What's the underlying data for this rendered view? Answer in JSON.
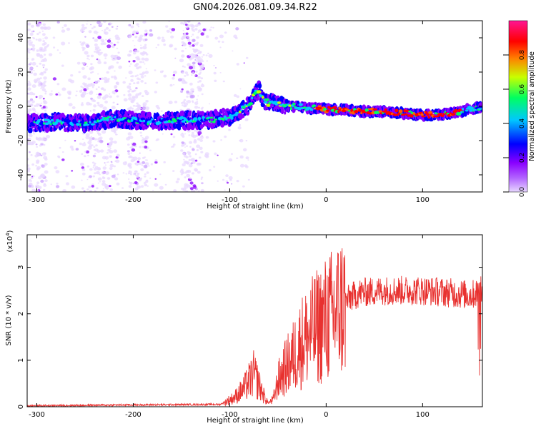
{
  "title": "GN04.2026.081.09.34.R22",
  "chart_data": [
    {
      "type": "heatmap",
      "xlabel": "Height of straight line (km)",
      "ylabel": "Frequency (Hz)",
      "xlim": [
        -310,
        162
      ],
      "ylim": [
        -50,
        50
      ],
      "xticks": [
        -300,
        -200,
        -100,
        0,
        100
      ],
      "yticks": [
        -40,
        -20,
        0,
        20,
        40
      ],
      "colorbar": {
        "label": "Normalized spectral amplitude",
        "range": [
          0.0,
          1.0
        ],
        "ticks": [
          0.0,
          0.2,
          0.4,
          0.6,
          0.8
        ],
        "colors": [
          "#e8d8ff",
          "#8a00ff",
          "#0000ff",
          "#00c8ff",
          "#00ff60",
          "#c8ff00",
          "#ff6000",
          "#ff0000",
          "#ff1493"
        ]
      },
      "ridge": {
        "x": [
          -310,
          -280,
          -250,
          -220,
          -200,
          -180,
          -150,
          -120,
          -100,
          -90,
          -80,
          -75,
          -70,
          -65,
          -60,
          -55,
          -50,
          -40,
          -30,
          -20,
          -10,
          0,
          20,
          40,
          60,
          80,
          100,
          120,
          140,
          162
        ],
        "y": [
          -10,
          -9,
          -10,
          -7,
          -8,
          -9,
          -8,
          -8,
          -6,
          -3,
          1,
          6,
          10,
          4,
          2,
          3,
          1,
          0,
          0,
          -1,
          -1,
          -2,
          -2,
          -3,
          -3,
          -4,
          -5,
          -5,
          -3,
          0
        ]
      }
    },
    {
      "type": "line",
      "xlabel": "Height of straight line (km)",
      "ylabel": "SNR (10 * v/v)",
      "scale_label": "(x10",
      "scale_exp": "4",
      "xlim": [
        -310,
        162
      ],
      "ylim": [
        0,
        3.7
      ],
      "xticks": [
        -300,
        -200,
        -100,
        0,
        100
      ],
      "yticks": [
        0,
        1,
        2,
        3
      ],
      "color": "#e8312f",
      "envelope": {
        "x": [
          -310,
          -200,
          -110,
          -95,
          -85,
          -75,
          -70,
          -65,
          -60,
          -55,
          -50,
          -45,
          -35,
          -25,
          -15,
          -5,
          5,
          15,
          25,
          35,
          60,
          80,
          100,
          130,
          150,
          162
        ],
        "y": [
          0.02,
          0.04,
          0.05,
          0.2,
          0.4,
          0.7,
          0.5,
          0.25,
          0.08,
          0.15,
          0.55,
          0.75,
          1.05,
          1.4,
          1.6,
          1.8,
          1.95,
          2.15,
          2.35,
          2.45,
          2.5,
          2.5,
          2.5,
          2.45,
          2.4,
          2.5
        ]
      }
    }
  ]
}
